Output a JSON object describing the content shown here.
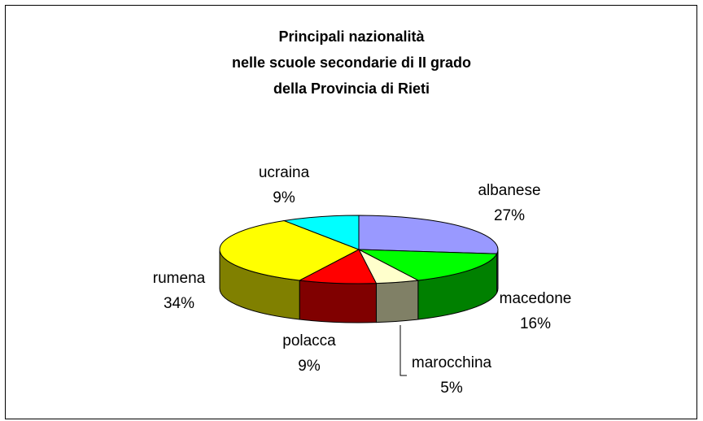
{
  "chart_data": {
    "type": "pie3d",
    "title": [
      "Principali nazionalità",
      "nelle scuole secondarie di II grado",
      "della Provincia di Rieti"
    ],
    "categories": [
      "albanese",
      "macedone",
      "marocchina",
      "polacca",
      "rumena",
      "ucraina"
    ],
    "values": [
      27,
      16,
      5,
      9,
      34,
      9
    ],
    "value_labels": [
      "27%",
      "16%",
      "5%",
      "9%",
      "34%",
      "9%"
    ],
    "colors": [
      "#9999ff",
      "#00ff00",
      "#ffffcc",
      "#ff0000",
      "#ffff00",
      "#00ffff"
    ],
    "side_colors": [
      "#5c5c99",
      "#008000",
      "#808066",
      "#800000",
      "#808000",
      "#008080"
    ]
  }
}
